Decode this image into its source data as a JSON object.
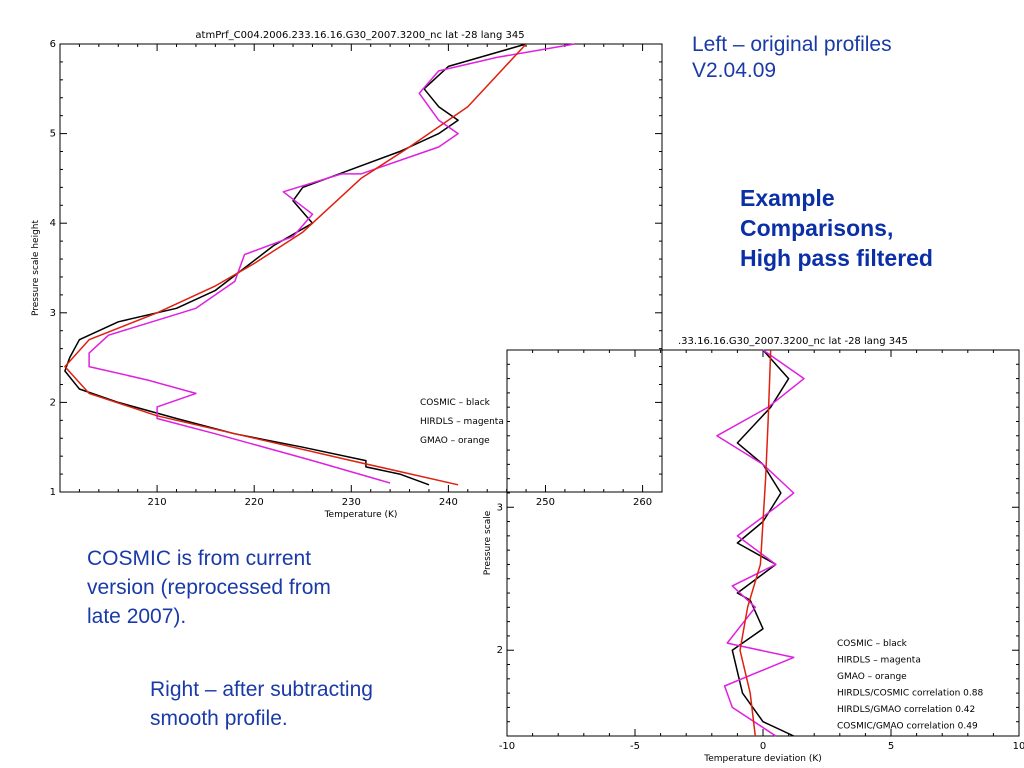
{
  "notes": {
    "left_title": [
      "Left – original profiles",
      "V2.04.09"
    ],
    "example": [
      "Example",
      "Comparisons,",
      "High pass filtered"
    ],
    "cosmic_note": [
      "COSMIC is from current",
      "version (reprocessed from",
      "late 2007)."
    ],
    "right_note": [
      "Right – after subtracting",
      "smooth profile."
    ]
  },
  "colors": {
    "cosmic": "#000000",
    "hirdls": "#e020e0",
    "gmao": "#e02010",
    "text": "#1a3aa8"
  },
  "chart_data": [
    {
      "type": "line",
      "title": "atmPrf_C004.2006.233.16.16.G30_2007.3200_nc      lat  -28   lang  345",
      "xlabel": "Temperature (K)",
      "ylabel": "Pressure scale height",
      "xlim": [
        200,
        262
      ],
      "ylim": [
        1,
        6
      ],
      "xticks": [
        210,
        220,
        230,
        240,
        250,
        260
      ],
      "yticks": [
        1,
        2,
        3,
        4,
        5,
        6
      ],
      "legend": [
        "COSMIC  – black",
        "HIRDLS  – magenta",
        "GMAO     – orange"
      ],
      "legend_position": "lower-right",
      "series": [
        {
          "name": "COSMIC",
          "color": "#000000",
          "points": [
            [
              238,
              1.08
            ],
            [
              235,
              1.2
            ],
            [
              231.5,
              1.28
            ],
            [
              231.5,
              1.35
            ],
            [
              225,
              1.5
            ],
            [
              218,
              1.65
            ],
            [
              212,
              1.82
            ],
            [
              206,
              2.0
            ],
            [
              202,
              2.15
            ],
            [
              200.5,
              2.35
            ],
            [
              201,
              2.5
            ],
            [
              202,
              2.7
            ],
            [
              206,
              2.9
            ],
            [
              212,
              3.05
            ],
            [
              216,
              3.25
            ],
            [
              219,
              3.5
            ],
            [
              222,
              3.75
            ],
            [
              226,
              4.0
            ],
            [
              224,
              4.25
            ],
            [
              225,
              4.4
            ],
            [
              230,
              4.6
            ],
            [
              235,
              4.8
            ],
            [
              239,
              5.0
            ],
            [
              241,
              5.15
            ],
            [
              239,
              5.3
            ],
            [
              237.5,
              5.5
            ],
            [
              240,
              5.75
            ],
            [
              248,
              6.0
            ]
          ]
        },
        {
          "name": "HIRDLS",
          "color": "#e020e0",
          "points": [
            [
              234,
              1.1
            ],
            [
              226,
              1.35
            ],
            [
              216,
              1.65
            ],
            [
              210,
              1.82
            ],
            [
              210,
              1.95
            ],
            [
              214,
              2.1
            ],
            [
              209,
              2.25
            ],
            [
              203,
              2.4
            ],
            [
              203,
              2.55
            ],
            [
              205,
              2.75
            ],
            [
              214,
              3.05
            ],
            [
              218,
              3.35
            ],
            [
              219,
              3.65
            ],
            [
              224,
              3.85
            ],
            [
              226,
              4.1
            ],
            [
              223,
              4.35
            ],
            [
              229,
              4.55
            ],
            [
              231,
              4.55
            ],
            [
              239,
              4.85
            ],
            [
              241,
              5.0
            ],
            [
              239,
              5.15
            ],
            [
              237,
              5.45
            ],
            [
              239,
              5.7
            ],
            [
              245,
              5.85
            ],
            [
              253,
              6.0
            ]
          ]
        },
        {
          "name": "GMAO",
          "color": "#e02010",
          "points": [
            [
              241,
              1.08
            ],
            [
              230,
              1.35
            ],
            [
              220,
              1.6
            ],
            [
              210,
              1.85
            ],
            [
              203,
              2.1
            ],
            [
              200.5,
              2.4
            ],
            [
              203,
              2.7
            ],
            [
              210,
              3.0
            ],
            [
              216,
              3.3
            ],
            [
              220,
              3.55
            ],
            [
              225,
              3.9
            ],
            [
              231,
              4.5
            ],
            [
              236,
              4.85
            ],
            [
              242,
              5.3
            ],
            [
              248,
              6.0
            ]
          ]
        }
      ]
    },
    {
      "type": "line",
      "title": ".33.16.16.G30_2007.3200_nc      lat  -28   lang  345",
      "xlabel": "Temperature deviation (K)",
      "ylabel": "Pressure scale",
      "xlim": [
        -10,
        10
      ],
      "ylim": [
        1.4,
        4.1
      ],
      "xticks": [
        -10,
        -5,
        0,
        5,
        10
      ],
      "yticks": [
        2,
        3
      ],
      "legend": [
        "COSMIC  – black",
        "HIRDLS  – magenta",
        "GMAO     – orange",
        "HIRDLS/COSMIC correlation  0.88",
        "HIRDLS/GMAO correlation     0.42",
        "COSMIC/GMAO correlation     0.49"
      ],
      "legend_position": "lower-right",
      "series": [
        {
          "name": "COSMIC",
          "color": "#000000",
          "points": [
            [
              1.2,
              1.4
            ],
            [
              0,
              1.5
            ],
            [
              -0.8,
              1.7
            ],
            [
              -1.2,
              2.0
            ],
            [
              0,
              2.15
            ],
            [
              -0.5,
              2.35
            ],
            [
              -1,
              2.4
            ],
            [
              0.5,
              2.6
            ],
            [
              -1,
              2.75
            ],
            [
              0,
              2.9
            ],
            [
              0.7,
              3.1
            ],
            [
              0,
              3.3
            ],
            [
              -1,
              3.45
            ],
            [
              0.3,
              3.7
            ],
            [
              1,
              3.9
            ],
            [
              0,
              4.1
            ]
          ]
        },
        {
          "name": "HIRDLS",
          "color": "#e020e0",
          "points": [
            [
              0.5,
              1.4
            ],
            [
              -1.2,
              1.6
            ],
            [
              -1.5,
              1.75
            ],
            [
              1.2,
              1.95
            ],
            [
              -1.4,
              2.05
            ],
            [
              -0.3,
              2.3
            ],
            [
              -1.2,
              2.45
            ],
            [
              0.5,
              2.6
            ],
            [
              -1,
              2.8
            ],
            [
              0.5,
              3.0
            ],
            [
              1.2,
              3.1
            ],
            [
              0,
              3.3
            ],
            [
              -1.8,
              3.5
            ],
            [
              0.2,
              3.7
            ],
            [
              1.6,
              3.9
            ],
            [
              0,
              4.1
            ]
          ]
        },
        {
          "name": "GMAO",
          "color": "#e02010",
          "points": [
            [
              -0.3,
              1.4
            ],
            [
              -0.5,
              1.7
            ],
            [
              -0.9,
              2.0
            ],
            [
              -0.6,
              2.3
            ],
            [
              -0.1,
              2.6
            ],
            [
              0,
              2.9
            ],
            [
              0.1,
              3.2
            ],
            [
              0.2,
              3.6
            ],
            [
              0.3,
              4.1
            ]
          ]
        }
      ]
    }
  ]
}
